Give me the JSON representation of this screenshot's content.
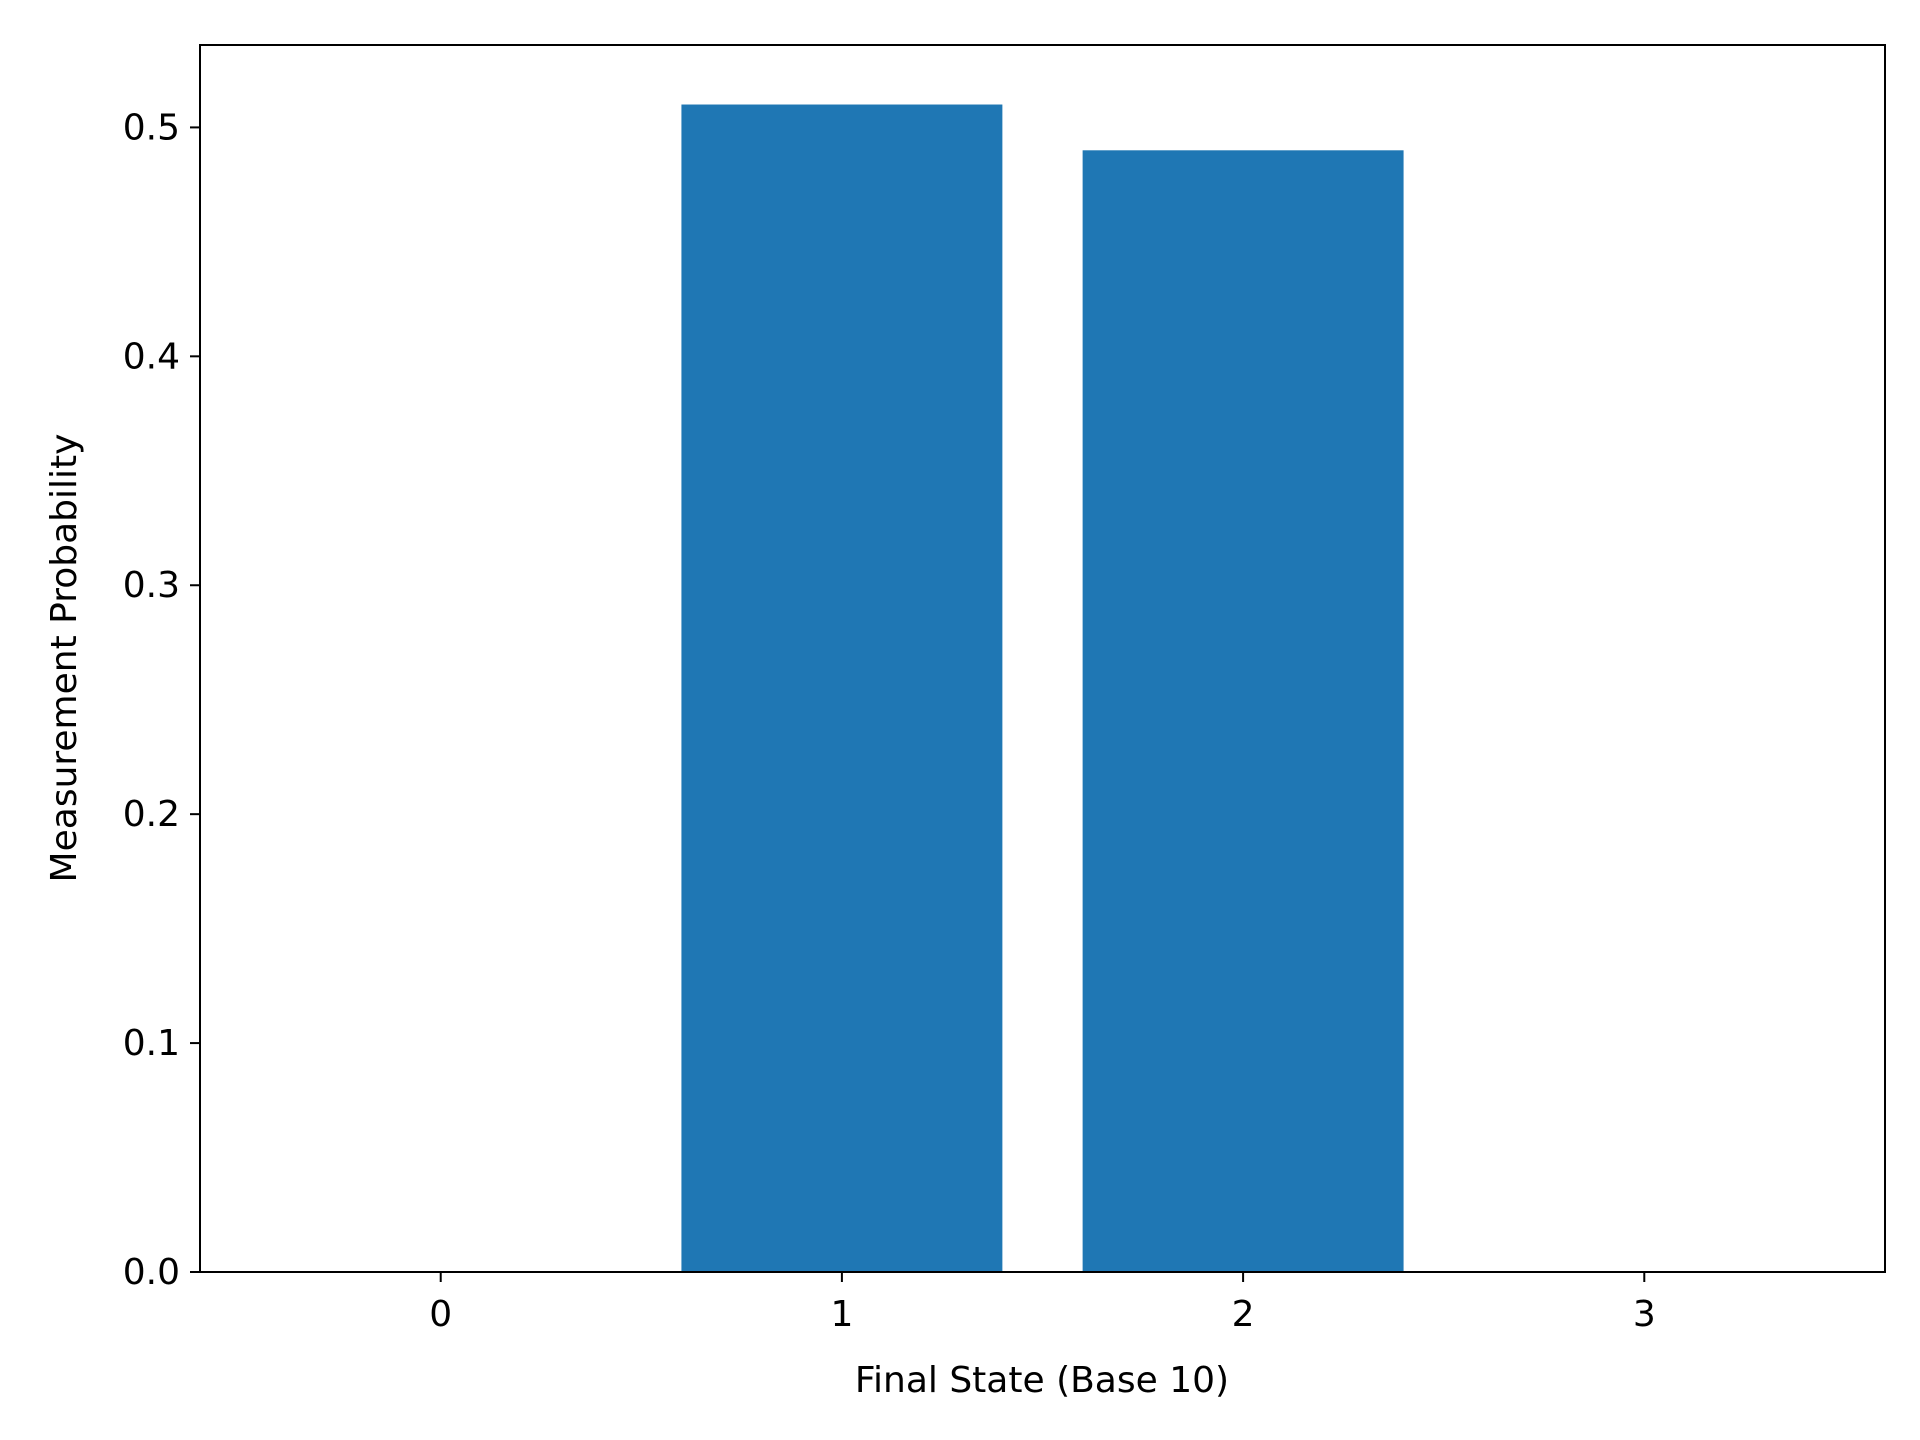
{
  "chart_data": {
    "type": "bar",
    "categories": [
      "0",
      "1",
      "2",
      "3"
    ],
    "x": [
      0,
      1,
      2,
      3
    ],
    "values": [
      0.0,
      0.51,
      0.49,
      0.0
    ],
    "title": "",
    "xlabel": "Final State (Base 10)",
    "ylabel": "Measurement Probability",
    "xlim": [
      -0.6,
      3.6
    ],
    "ylim": [
      0,
      0.536
    ],
    "yticks": [
      0.0,
      0.1,
      0.2,
      0.3,
      0.4,
      0.5
    ],
    "ytick_labels": [
      "0.0",
      "0.1",
      "0.2",
      "0.3",
      "0.4",
      "0.5"
    ],
    "bar_width": 0.8,
    "bar_color": "#1f77b4",
    "grid": false,
    "legend": null
  }
}
